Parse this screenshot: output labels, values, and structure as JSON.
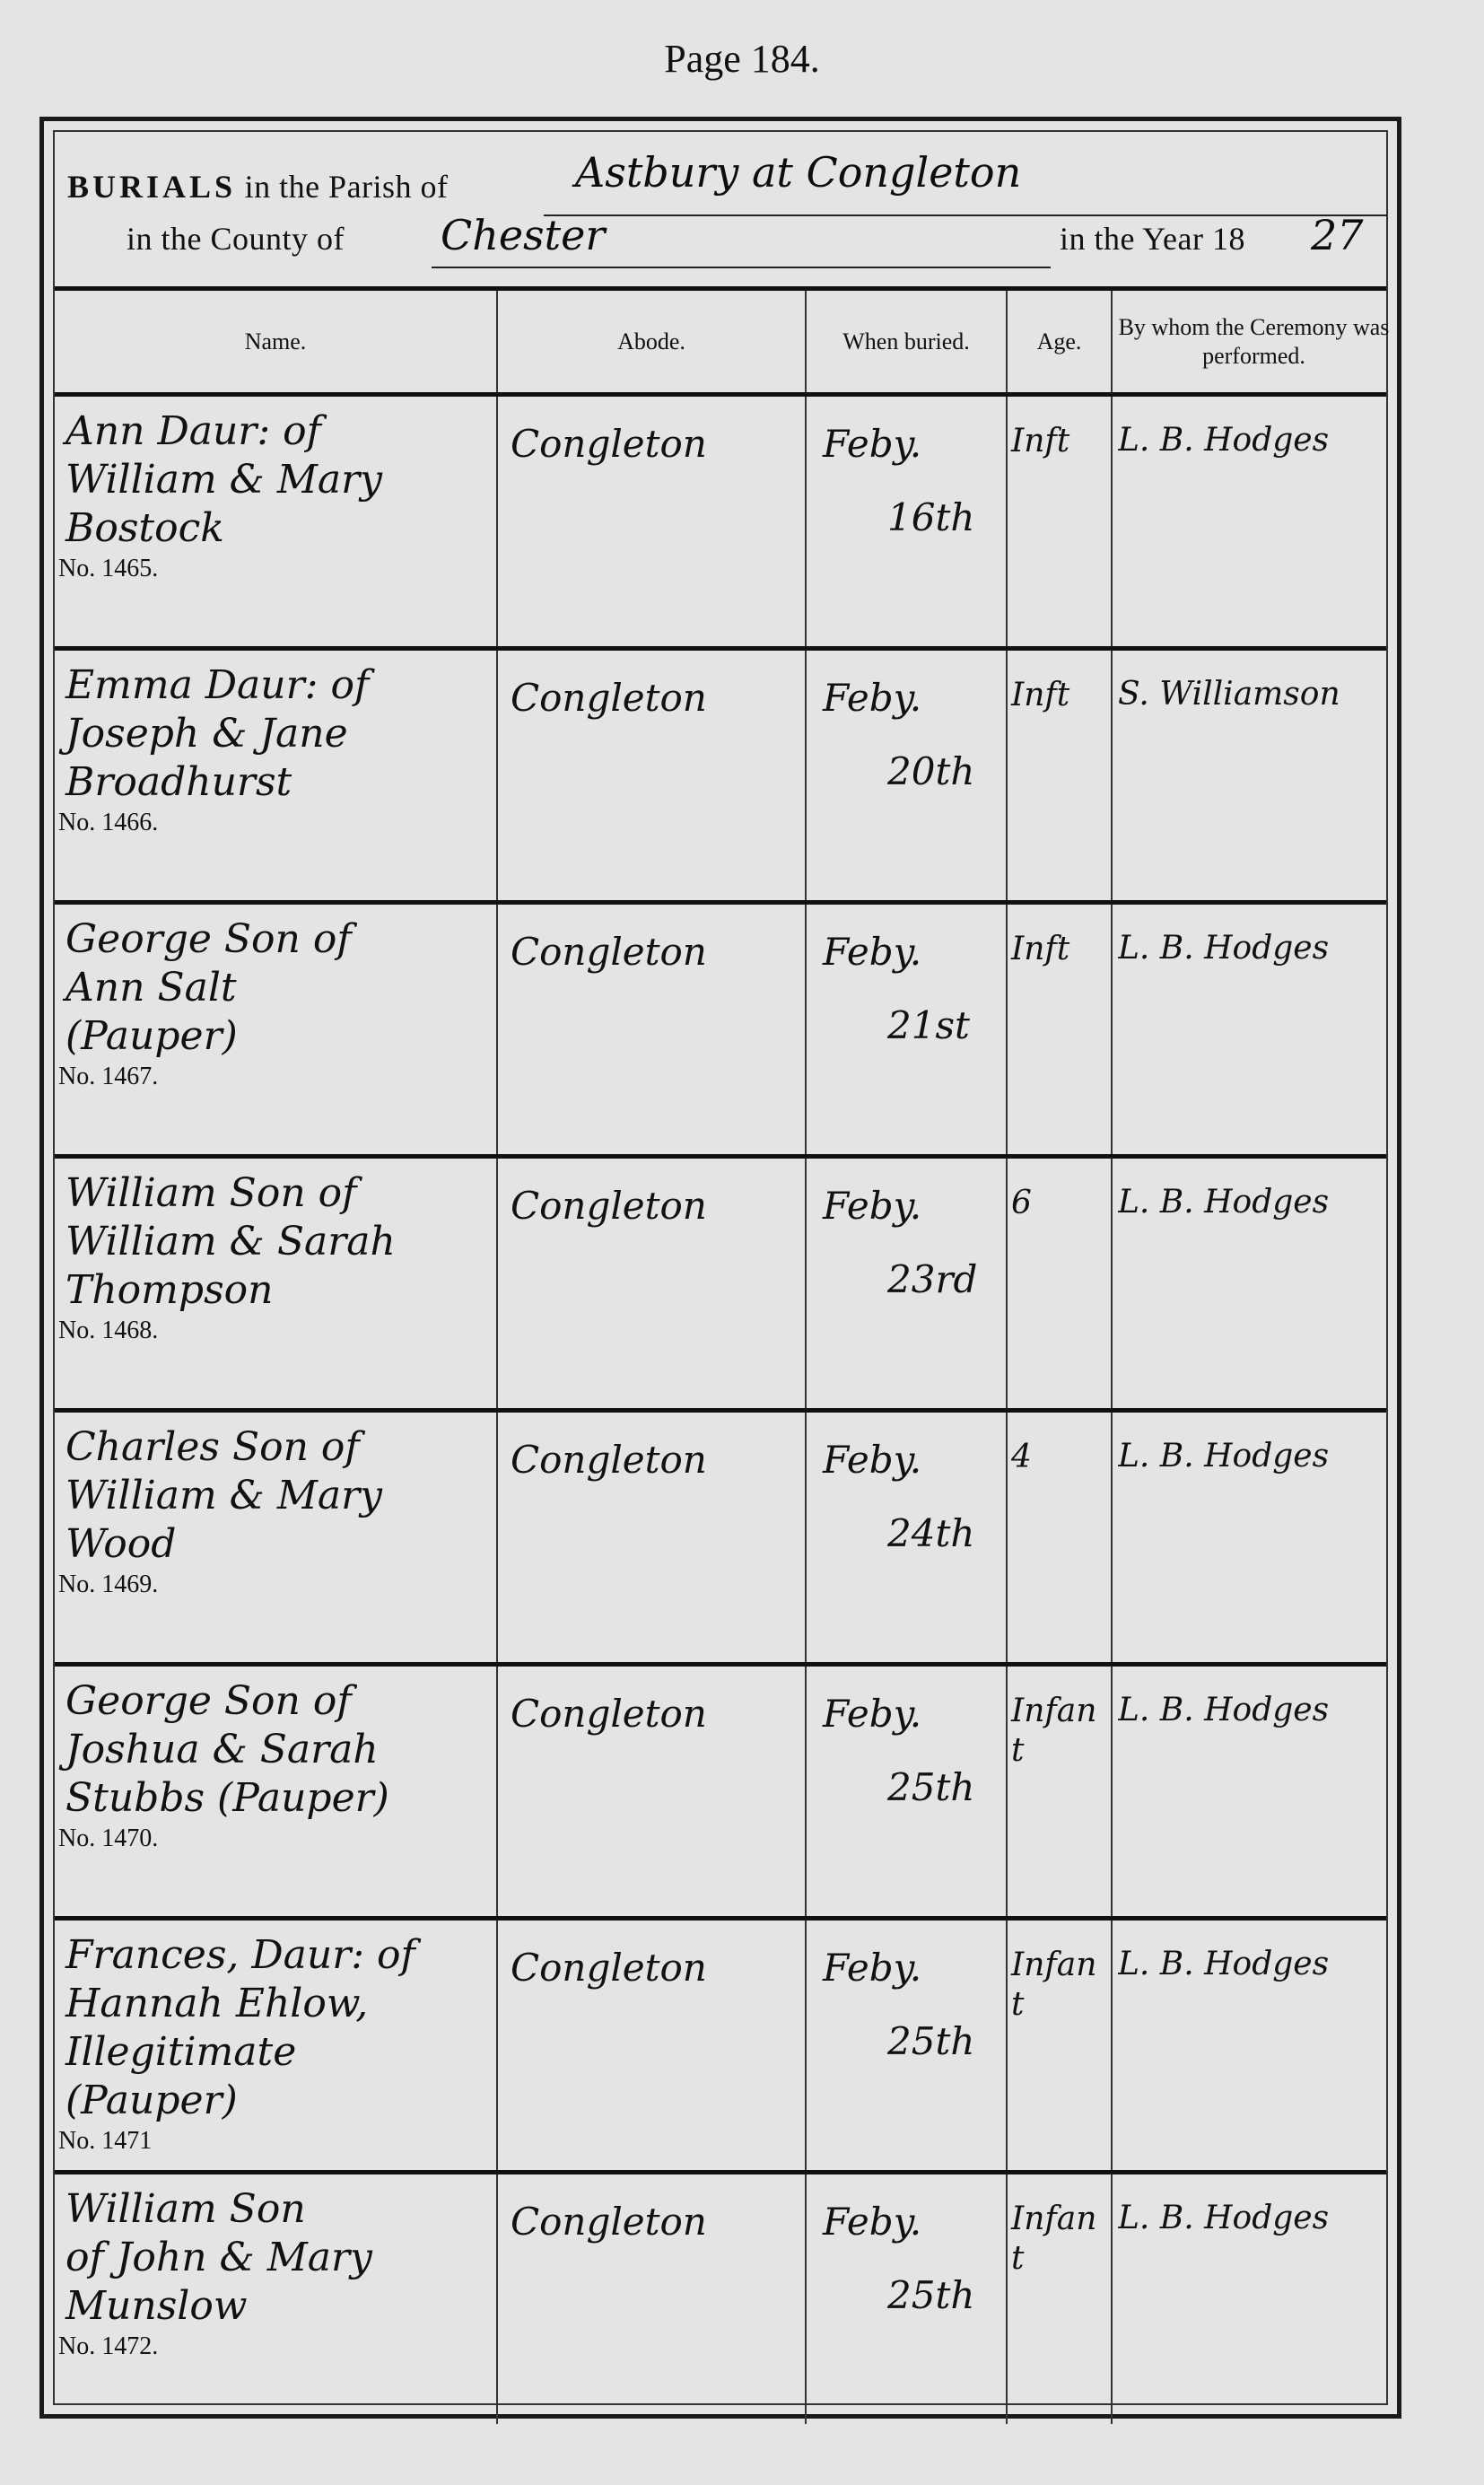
{
  "page_title": "Page 184.",
  "header": {
    "burials_label": "BURIALS",
    "parish_label": "in the Parish of",
    "parish_value": "Astbury at Congleton",
    "county_label": "in the County of",
    "county_value": "Chester",
    "year_label": "in the Year 18",
    "year_value": "27"
  },
  "columns": [
    "Name.",
    "Abode.",
    "When buried.",
    "Age.",
    "By whom the Ceremony was performed."
  ],
  "entries": [
    {
      "name": "Ann Daur: of\nWilliam & Mary\nBostock",
      "no": "No. 1465.",
      "abode": "Congleton",
      "month": "Feby.",
      "day": "16th",
      "age": "Inft",
      "officiant": "L. B. Hodges"
    },
    {
      "name": "Emma Daur: of\nJoseph & Jane\nBroadhurst",
      "no": "No. 1466.",
      "abode": "Congleton",
      "month": "Feby.",
      "day": "20th",
      "age": "Inft",
      "officiant": "S. Williamson"
    },
    {
      "name": "George Son of\nAnn Salt\n      (Pauper)",
      "no": "No. 1467.",
      "abode": "Congleton",
      "month": "Feby.",
      "day": "21st",
      "age": "Inft",
      "officiant": "L. B. Hodges"
    },
    {
      "name": "William Son of\nWilliam & Sarah\nThompson",
      "no": "No. 1468.",
      "abode": "Congleton",
      "month": "Feby.",
      "day": "23rd",
      "age": "6",
      "officiant": "L. B. Hodges"
    },
    {
      "name": "Charles Son of\nWilliam & Mary\nWood",
      "no": "No. 1469.",
      "abode": "Congleton",
      "month": "Feby.",
      "day": "24th",
      "age": "4",
      "officiant": "L. B. Hodges"
    },
    {
      "name": "George Son of\nJoshua & Sarah\nStubbs (Pauper)",
      "no": "No. 1470.",
      "abode": "Congleton",
      "month": "Feby.",
      "day": "25th",
      "age": "Infant",
      "officiant": "L. B. Hodges"
    },
    {
      "name": "Frances, Daur: of\nHannah Ehlow,\nIllegitimate\n      (Pauper)",
      "no": "No. 1471",
      "abode": "Congleton",
      "month": "Feby.",
      "day": "25th",
      "age": "Infant",
      "officiant": "L. B. Hodges"
    },
    {
      "name": "William Son\nof John & Mary\nMunslow",
      "no": "No. 1472.",
      "abode": "Congleton",
      "month": "Feby.",
      "day": "25th",
      "age": "Infant",
      "officiant": "L. B. Hodges"
    }
  ]
}
